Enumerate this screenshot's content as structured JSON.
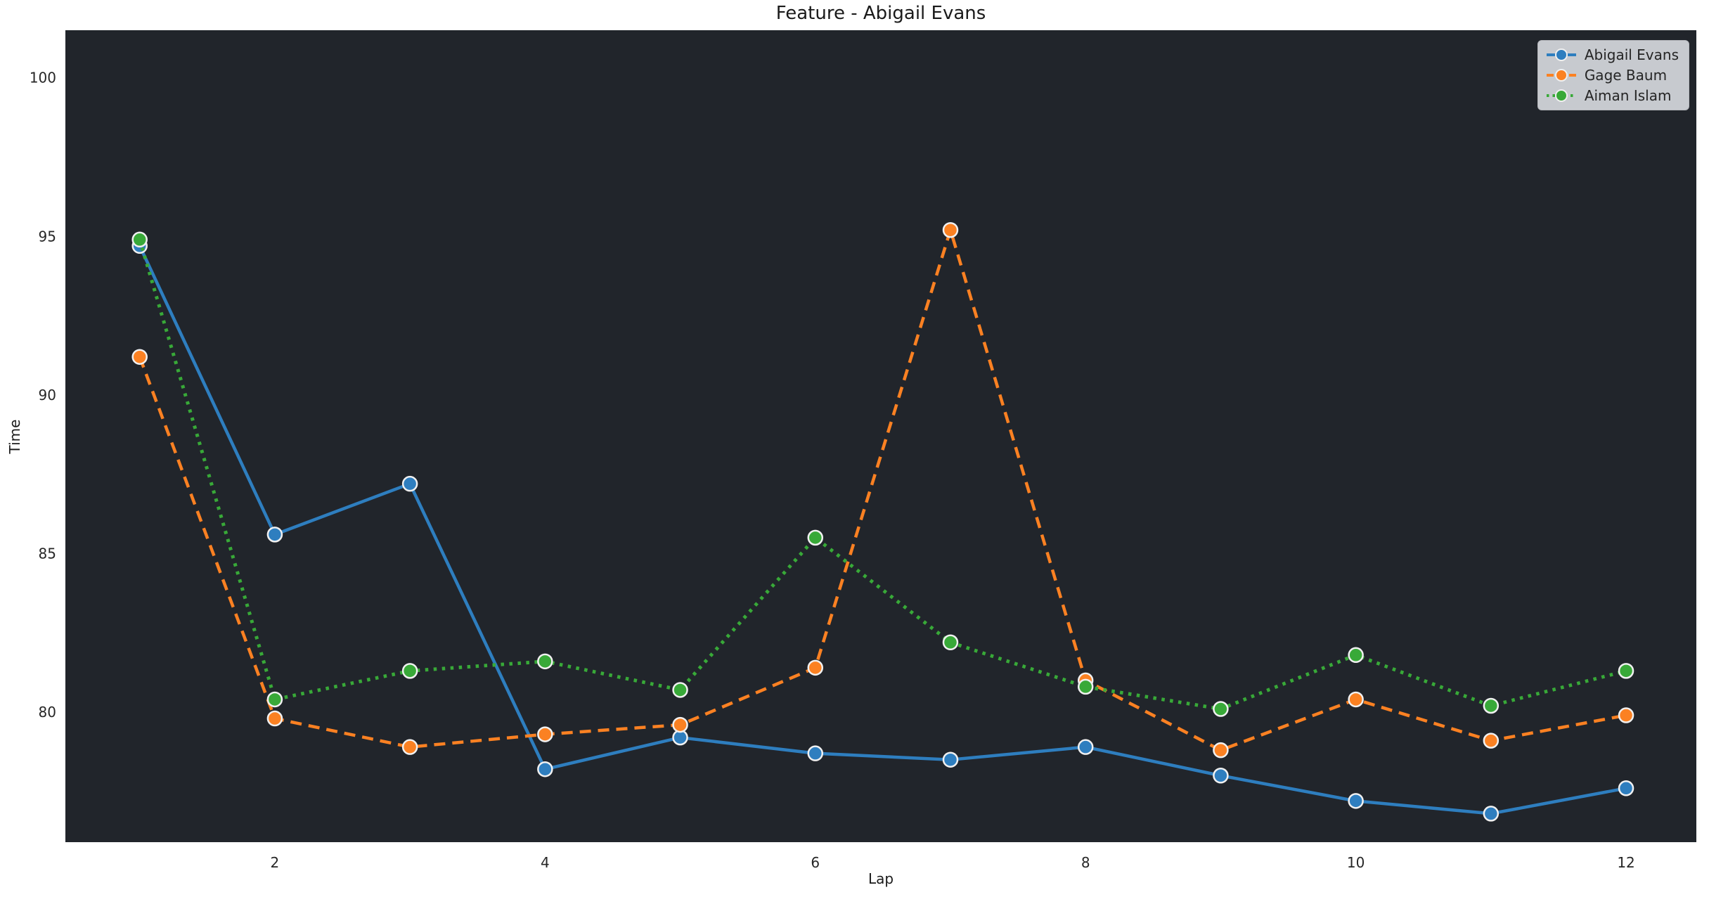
{
  "chart_data": {
    "type": "line",
    "title": "Feature - Abigail Evans",
    "xlabel": "Lap",
    "ylabel": "Time",
    "x": [
      1,
      2,
      3,
      4,
      5,
      6,
      7,
      8,
      9,
      10,
      11,
      12
    ],
    "series": [
      {
        "name": "Abigail Evans",
        "color": "#2e7ebf",
        "line_style": "solid",
        "values": [
          94.7,
          85.6,
          87.2,
          78.2,
          79.2,
          78.7,
          78.5,
          78.9,
          78.0,
          77.2,
          76.8,
          77.6
        ]
      },
      {
        "name": "Gage Baum",
        "color": "#fb8122",
        "line_style": "dashed",
        "values": [
          91.2,
          79.8,
          78.9,
          79.3,
          79.6,
          81.4,
          95.2,
          81.0,
          78.8,
          80.4,
          79.1,
          79.9
        ]
      },
      {
        "name": "Aiman Islam",
        "color": "#38a938",
        "line_style": "dotted",
        "values": [
          94.9,
          80.4,
          81.3,
          81.6,
          80.7,
          85.5,
          82.2,
          80.8,
          80.1,
          81.8,
          80.2,
          81.3
        ]
      }
    ],
    "xticks": [
      2,
      4,
      6,
      8,
      10,
      12
    ],
    "yticks": [
      80,
      85,
      90,
      95,
      100
    ],
    "xlim": [
      0.45,
      12.52
    ],
    "ylim": [
      75.9,
      101.5
    ],
    "grid": false,
    "legend_position": "upper right",
    "plot_bg": "#21252b",
    "figure_bg": "#ffffff",
    "marker": "circle",
    "marker_edge_color": "#f0f0f0",
    "tick_color": "#262626"
  }
}
